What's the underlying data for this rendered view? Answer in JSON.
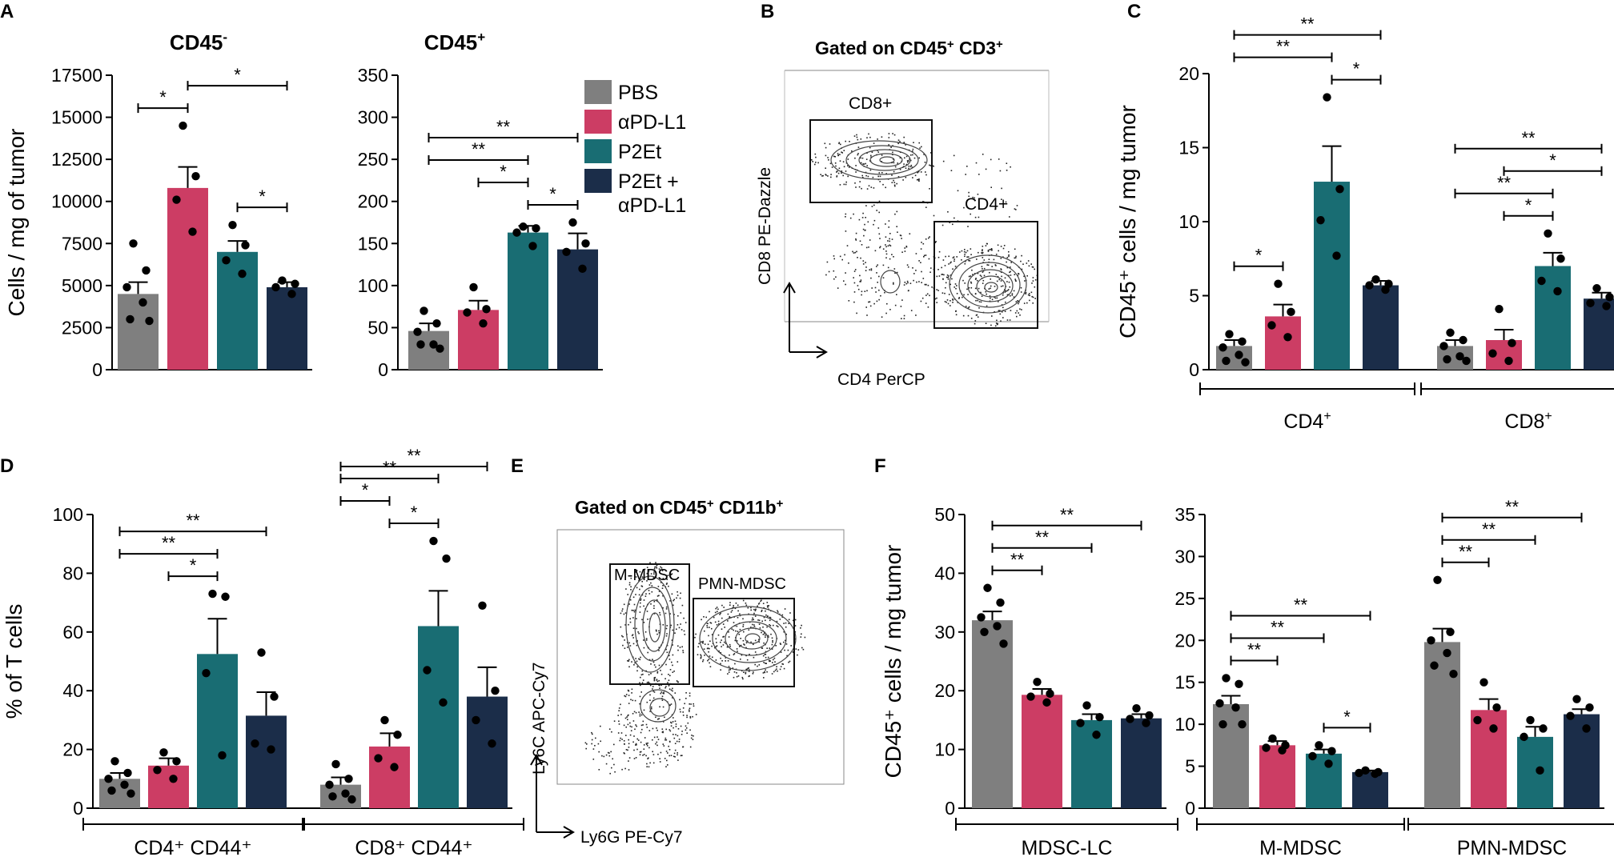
{
  "colors": {
    "PBS": "#7f7f7f",
    "aPDL1": "#cc3d64",
    "P2Et": "#196d73",
    "combo": "#1b2d49"
  },
  "legend": {
    "items": [
      {
        "label": "PBS",
        "color": "#7f7f7f"
      },
      {
        "label": "αPD-L1",
        "color": "#cc3d64"
      },
      {
        "label": "P2Et",
        "color": "#196d73"
      },
      {
        "label": "P2Et +",
        "label2": "αPD-L1",
        "color": "#1b2d49"
      }
    ]
  },
  "panel_letters": [
    "A",
    "B",
    "C",
    "D",
    "E",
    "F"
  ],
  "flow_B": {
    "title_prefix": "Gated on CD45",
    "title_sup1": "+",
    "title_mid": " CD3",
    "title_sup2": "+",
    "gate1": "CD8+",
    "gate2": "CD4+",
    "ylabel": "CD8 PE-Dazzle",
    "xlabel": "CD4 PerCP"
  },
  "flow_E": {
    "title_prefix": "Gated on CD45",
    "title_sup1": "+",
    "title_mid": " CD11b",
    "title_sup2": "+",
    "gate1": "M-MDSC",
    "gate2": "PMN-MDSC",
    "ylabel": "Ly6C APC-Cy7",
    "xlabel": "Ly6G PE-Cy7"
  },
  "chart_data": [
    {
      "id": "A1",
      "type": "bar",
      "title": "CD45",
      "title_sup": "-",
      "ylabel": "Cells / mg of tumor",
      "ylim": [
        0,
        17500
      ],
      "yticks": [
        "0",
        "2500",
        "5000",
        "7500",
        "10000",
        "12500",
        "15000",
        "17500"
      ],
      "groups": [
        {
          "label": "",
          "series": [
            {
              "name": "PBS",
              "value": 4500,
              "sem": 700,
              "points": [
                7500,
                5900,
                4900,
                4000,
                3000,
                2900
              ]
            },
            {
              "name": "αPD-L1",
              "value": 10800,
              "sem": 1250,
              "points": [
                14500,
                11500,
                10100,
                8200
              ]
            },
            {
              "name": "P2Et",
              "value": 7000,
              "sem": 650,
              "points": [
                8600,
                7400,
                6500,
                5700
              ]
            },
            {
              "name": "P2Et + αPD-L1",
              "value": 4900,
              "sem": 300,
              "points": [
                5300,
                5100,
                4900,
                4500
              ]
            }
          ]
        }
      ],
      "significance": [
        {
          "from": 0,
          "to": 1,
          "label": "*"
        },
        {
          "from": 1,
          "to": 3,
          "label": "*"
        },
        {
          "from": 2,
          "to": 3,
          "label": "*"
        }
      ]
    },
    {
      "id": "A2",
      "type": "bar",
      "title": "CD45",
      "title_sup": "+",
      "ylabel": "",
      "ylim": [
        0,
        350
      ],
      "yticks": [
        "0",
        "50",
        "100",
        "150",
        "200",
        "250",
        "300",
        "350"
      ],
      "groups": [
        {
          "label": "",
          "series": [
            {
              "name": "PBS",
              "value": 46,
              "sem": 9,
              "points": [
                70,
                55,
                45,
                30,
                30,
                25
              ]
            },
            {
              "name": "αPD-L1",
              "value": 71,
              "sem": 11,
              "points": [
                98,
                72,
                68,
                55
              ]
            },
            {
              "name": "P2Et",
              "value": 163,
              "sem": 8,
              "points": [
                170,
                168,
                163,
                147
              ]
            },
            {
              "name": "P2Et + αPD-L1",
              "value": 143,
              "sem": 19,
              "points": [
                175,
                150,
                140,
                120
              ]
            }
          ]
        }
      ],
      "significance": [
        {
          "from": 2,
          "to": 3,
          "label": "*"
        },
        {
          "from": 1,
          "to": 2,
          "label": "*"
        },
        {
          "from": 0,
          "to": 3,
          "label": "**"
        },
        {
          "from": 0,
          "to": 2,
          "label": "**"
        }
      ]
    },
    {
      "id": "C",
      "type": "bar",
      "title": "",
      "title_sup": "",
      "ylabel": "CD45⁺ cells / mg tumor",
      "ylim": [
        0,
        20
      ],
      "yticks": [
        "0",
        "5",
        "10",
        "15",
        "20"
      ],
      "groups": [
        {
          "label": "CD4",
          "label_sup": "+",
          "series": [
            {
              "name": "PBS",
              "value": 1.6,
              "sem": 0.4,
              "points": [
                2.4,
                1.9,
                1.5,
                1.0,
                0.6,
                0.5
              ]
            },
            {
              "name": "αPD-L1",
              "value": 3.6,
              "sem": 0.8,
              "points": [
                5.8,
                3.9,
                3.0,
                2.2
              ]
            },
            {
              "name": "P2Et",
              "value": 12.7,
              "sem": 2.4,
              "points": [
                18.4,
                12.2,
                10.1,
                7.7
              ]
            },
            {
              "name": "P2Et + αPD-L1",
              "value": 5.7,
              "sem": 0.3,
              "points": [
                6.1,
                5.8,
                5.7,
                5.4
              ]
            }
          ]
        },
        {
          "label": "CD8",
          "label_sup": "+",
          "series": [
            {
              "name": "PBS",
              "value": 1.6,
              "sem": 0.4,
              "points": [
                2.5,
                2.0,
                1.6,
                0.9,
                0.7,
                0.6
              ]
            },
            {
              "name": "αPD-L1",
              "value": 2.0,
              "sem": 0.7,
              "points": [
                4.1,
                1.8,
                1.1,
                0.6
              ]
            },
            {
              "name": "P2Et",
              "value": 7.0,
              "sem": 0.9,
              "points": [
                9.2,
                7.5,
                6.0,
                5.3
              ]
            },
            {
              "name": "P2Et + αPD-L1",
              "value": 4.8,
              "sem": 0.4,
              "points": [
                5.5,
                4.9,
                4.5,
                4.3
              ]
            }
          ]
        }
      ],
      "significance": [
        {
          "group": 0,
          "from": 0,
          "to": 3,
          "label": "**"
        },
        {
          "group": 0,
          "from": 0,
          "to": 2,
          "label": "**"
        },
        {
          "group": 0,
          "from": 0,
          "to": 1,
          "label": "*"
        },
        {
          "group": 0,
          "from": 2,
          "to": 3,
          "label": "*"
        },
        {
          "group": 1,
          "from": 0,
          "to": 3,
          "label": "**"
        },
        {
          "group": 1,
          "from": 0,
          "to": 2,
          "label": "**"
        },
        {
          "group": 1,
          "from": 1,
          "to": 2,
          "label": "*"
        },
        {
          "group": 1,
          "from": 1,
          "to": 3,
          "label": "*"
        }
      ]
    },
    {
      "id": "D",
      "type": "bar",
      "title": "",
      "title_sup": "",
      "ylabel": "% of T cells",
      "ylim": [
        0,
        100
      ],
      "yticks": [
        "0",
        "20",
        "40",
        "60",
        "80",
        "100"
      ],
      "groups": [
        {
          "label": "CD4⁺ CD44⁺",
          "series": [
            {
              "name": "PBS",
              "value": 10,
              "sem": 2,
              "points": [
                16,
                12,
                10,
                8,
                6,
                5
              ]
            },
            {
              "name": "αPD-L1",
              "value": 14.5,
              "sem": 2.5,
              "points": [
                19,
                16,
                13,
                10
              ]
            },
            {
              "name": "P2Et",
              "value": 52.5,
              "sem": 12,
              "points": [
                73,
                72,
                46,
                18
              ]
            },
            {
              "name": "P2Et + αPD-L1",
              "value": 31.5,
              "sem": 8,
              "points": [
                53,
                38,
                22,
                20
              ]
            }
          ]
        },
        {
          "label": "CD8⁺ CD44⁺",
          "series": [
            {
              "name": "PBS",
              "value": 8,
              "sem": 2.5,
              "points": [
                15,
                10,
                8,
                5,
                4,
                3
              ]
            },
            {
              "name": "αPD-L1",
              "value": 21,
              "sem": 4.5,
              "points": [
                30,
                25,
                17,
                14
              ]
            },
            {
              "name": "P2Et",
              "value": 62,
              "sem": 12,
              "points": [
                91,
                85,
                47,
                36
              ]
            },
            {
              "name": "P2Et + αPD-L1",
              "value": 38,
              "sem": 10,
              "points": [
                69,
                40,
                30,
                22
              ]
            }
          ]
        }
      ],
      "significance": [
        {
          "group": 0,
          "from": 1,
          "to": 2,
          "label": "*"
        },
        {
          "group": 0,
          "from": 0,
          "to": 2,
          "label": "**"
        },
        {
          "group": 0,
          "from": 0,
          "to": 3,
          "label": "**"
        },
        {
          "group": 1,
          "from": 1,
          "to": 2,
          "label": "*"
        },
        {
          "group": 1,
          "from": 0,
          "to": 2,
          "label": "**"
        },
        {
          "group": 1,
          "from": 0,
          "to": 3,
          "label": "**"
        },
        {
          "group": 1,
          "from": 0,
          "to": 1,
          "label": "*"
        }
      ]
    },
    {
      "id": "F1",
      "type": "bar",
      "title": "",
      "title_sup": "",
      "ylabel": "CD45⁺ cells / mg tumor",
      "ylim": [
        0,
        50
      ],
      "yticks": [
        "0",
        "10",
        "20",
        "30",
        "40",
        "50"
      ],
      "groups": [
        {
          "label": "MDSC-LC",
          "series": [
            {
              "name": "PBS",
              "value": 32,
              "sem": 1.5,
              "points": [
                37.5,
                35,
                32.5,
                31,
                30,
                28
              ]
            },
            {
              "name": "αPD-L1",
              "value": 19.3,
              "sem": 1,
              "points": [
                21.5,
                19.5,
                19,
                18
              ]
            },
            {
              "name": "P2Et",
              "value": 15,
              "sem": 1,
              "points": [
                17.5,
                15.5,
                14.5,
                12.5
              ]
            },
            {
              "name": "P2Et + αPD-L1",
              "value": 15.3,
              "sem": 0.7,
              "points": [
                17,
                15.8,
                15.2,
                14.5
              ]
            }
          ]
        }
      ],
      "significance": [
        {
          "from": 0,
          "to": 1,
          "label": "**"
        },
        {
          "from": 0,
          "to": 2,
          "label": "**"
        },
        {
          "from": 0,
          "to": 3,
          "label": "**"
        }
      ]
    },
    {
      "id": "F2",
      "type": "bar",
      "title": "",
      "title_sup": "",
      "ylabel": "",
      "ylim": [
        0,
        35
      ],
      "yticks": [
        "0",
        "5",
        "10",
        "15",
        "20",
        "25",
        "30",
        "35"
      ],
      "groups": [
        {
          "label": "M-MDSC",
          "series": [
            {
              "name": "PBS",
              "value": 12.4,
              "sem": 1,
              "points": [
                15.5,
                14.8,
                12.5,
                12,
                10,
                10
              ]
            },
            {
              "name": "αPD-L1",
              "value": 7.5,
              "sem": 0.5,
              "points": [
                8.3,
                7.5,
                7.2,
                6.9
              ]
            },
            {
              "name": "P2Et",
              "value": 6.5,
              "sem": 0.5,
              "points": [
                7.5,
                6.8,
                6.2,
                5.3
              ]
            },
            {
              "name": "P2Et + αPD-L1",
              "value": 4.3,
              "sem": 0.2,
              "points": [
                4.5,
                4.3,
                4.2,
                4.1
              ]
            }
          ]
        },
        {
          "label": "PMN-MDSC",
          "series": [
            {
              "name": "PBS",
              "value": 19.8,
              "sem": 1.6,
              "points": [
                27.2,
                21,
                20,
                18.5,
                17,
                16
              ]
            },
            {
              "name": "αPD-L1",
              "value": 11.7,
              "sem": 1.3,
              "points": [
                15,
                12,
                10.5,
                9.5
              ]
            },
            {
              "name": "P2Et",
              "value": 8.5,
              "sem": 1.2,
              "points": [
                10.5,
                9.5,
                8.5,
                4.5
              ]
            },
            {
              "name": "P2Et + αPD-L1",
              "value": 11.2,
              "sem": 0.6,
              "points": [
                13,
                12,
                11,
                9.5
              ]
            }
          ]
        }
      ],
      "significance": [
        {
          "group": 0,
          "from": 0,
          "to": 3,
          "label": "**"
        },
        {
          "group": 0,
          "from": 0,
          "to": 2,
          "label": "**"
        },
        {
          "group": 0,
          "from": 0,
          "to": 1,
          "label": "**"
        },
        {
          "group": 0,
          "from": 2,
          "to": 3,
          "label": "*"
        },
        {
          "group": 1,
          "from": 0,
          "to": 3,
          "label": "**"
        },
        {
          "group": 1,
          "from": 0,
          "to": 2,
          "label": "**"
        },
        {
          "group": 1,
          "from": 0,
          "to": 1,
          "label": "**"
        }
      ]
    }
  ]
}
